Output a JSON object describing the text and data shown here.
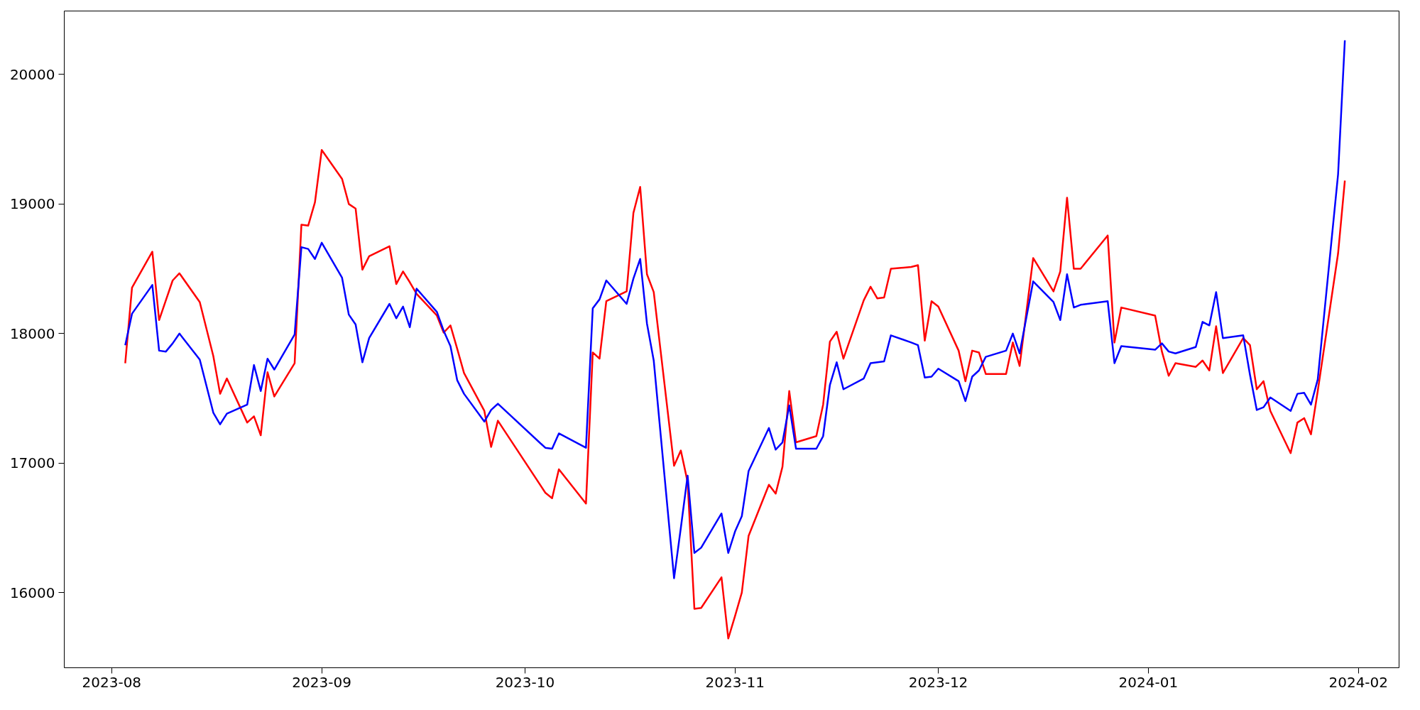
{
  "chart_data": {
    "type": "line",
    "x": [
      "2023-08-03",
      "2023-08-04",
      "2023-08-07",
      "2023-08-08",
      "2023-08-09",
      "2023-08-10",
      "2023-08-11",
      "2023-08-14",
      "2023-08-16",
      "2023-08-17",
      "2023-08-18",
      "2023-08-21",
      "2023-08-22",
      "2023-08-23",
      "2023-08-24",
      "2023-08-25",
      "2023-08-28",
      "2023-08-29",
      "2023-08-30",
      "2023-08-31",
      "2023-09-01",
      "2023-09-04",
      "2023-09-05",
      "2023-09-06",
      "2023-09-07",
      "2023-09-08",
      "2023-09-11",
      "2023-09-12",
      "2023-09-13",
      "2023-09-14",
      "2023-09-15",
      "2023-09-18",
      "2023-09-19",
      "2023-09-20",
      "2023-09-21",
      "2023-09-22",
      "2023-09-25",
      "2023-09-26",
      "2023-09-27",
      "2023-10-04",
      "2023-10-05",
      "2023-10-06",
      "2023-10-10",
      "2023-10-11",
      "2023-10-12",
      "2023-10-13",
      "2023-10-16",
      "2023-10-17",
      "2023-10-18",
      "2023-10-19",
      "2023-10-20",
      "2023-10-23",
      "2023-10-24",
      "2023-10-25",
      "2023-10-26",
      "2023-10-27",
      "2023-10-30",
      "2023-10-31",
      "2023-11-01",
      "2023-11-02",
      "2023-11-03",
      "2023-11-06",
      "2023-11-07",
      "2023-11-08",
      "2023-11-09",
      "2023-11-10",
      "2023-11-13",
      "2023-11-14",
      "2023-11-15",
      "2023-11-16",
      "2023-11-17",
      "2023-11-20",
      "2023-11-21",
      "2023-11-22",
      "2023-11-23",
      "2023-11-24",
      "2023-11-27",
      "2023-11-28",
      "2023-11-29",
      "2023-11-30",
      "2023-12-01",
      "2023-12-04",
      "2023-12-05",
      "2023-12-06",
      "2023-12-07",
      "2023-12-08",
      "2023-12-11",
      "2023-12-12",
      "2023-12-13",
      "2023-12-15",
      "2023-12-18",
      "2023-12-19",
      "2023-12-20",
      "2023-12-21",
      "2023-12-22",
      "2023-12-26",
      "2023-12-27",
      "2023-12-28",
      "2024-01-02",
      "2024-01-03",
      "2024-01-04",
      "2024-01-05",
      "2024-01-08",
      "2024-01-09",
      "2024-01-10",
      "2024-01-11",
      "2024-01-12",
      "2024-01-15",
      "2024-01-16",
      "2024-01-17",
      "2024-01-18",
      "2024-01-19",
      "2024-01-22",
      "2024-01-23",
      "2024-01-24",
      "2024-01-25",
      "2024-01-26",
      "2024-01-29",
      "2024-01-30"
    ],
    "series": [
      {
        "color": "#ff0000",
        "values": [
          17771,
          18354,
          18632,
          18104,
          18257,
          18410,
          18465,
          18243,
          17826,
          17535,
          17653,
          17313,
          17361,
          17215,
          17701,
          17514,
          17771,
          18840,
          18833,
          19014,
          19417,
          19194,
          19000,
          18965,
          18493,
          18597,
          18674,
          18382,
          18479,
          18396,
          18306,
          18139,
          18007,
          18063,
          17882,
          17695,
          17403,
          17125,
          17327,
          16771,
          16729,
          16952,
          16688,
          17854,
          17806,
          18250,
          18326,
          18931,
          19132,
          18458,
          18320,
          16979,
          17097,
          16854,
          15875,
          15882,
          16118,
          15646,
          15820,
          16000,
          16438,
          16833,
          16764,
          16972,
          17556,
          17160,
          17208,
          17451,
          17938,
          18014,
          17806,
          18257,
          18361,
          18271,
          18278,
          18500,
          18514,
          18528,
          17945,
          18250,
          18208,
          17868,
          17632,
          17868,
          17854,
          17688,
          17688,
          17931,
          17750,
          18583,
          18326,
          18479,
          19049,
          18500,
          18500,
          18757,
          17931,
          18201,
          18139,
          17861,
          17674,
          17771,
          17743,
          17792,
          17715,
          18056,
          17695,
          17965,
          17910,
          17570,
          17632,
          17403,
          17077,
          17313,
          17347,
          17222,
          17556,
          18618,
          19181
        ]
      },
      {
        "color": "#0000ff",
        "values": [
          17910,
          18153,
          18375,
          17868,
          17861,
          17924,
          18000,
          17799,
          17389,
          17299,
          17382,
          17451,
          17757,
          17556,
          17806,
          17722,
          17993,
          18667,
          18653,
          18576,
          18701,
          18431,
          18146,
          18070,
          17778,
          17965,
          18229,
          18118,
          18208,
          18049,
          18347,
          18167,
          18021,
          17903,
          17639,
          17535,
          17320,
          17410,
          17458,
          17118,
          17111,
          17229,
          17118,
          18195,
          18264,
          18410,
          18229,
          18424,
          18576,
          18077,
          17792,
          16111,
          16500,
          16903,
          16306,
          16347,
          16611,
          16306,
          16472,
          16590,
          16938,
          17271,
          17104,
          17160,
          17445,
          17111,
          17111,
          17208,
          17604,
          17778,
          17570,
          17653,
          17771,
          17778,
          17785,
          17986,
          17931,
          17910,
          17660,
          17667,
          17729,
          17632,
          17479,
          17667,
          17715,
          17820,
          17868,
          18000,
          17847,
          18403,
          18243,
          18104,
          18458,
          18201,
          18222,
          18250,
          17771,
          17903,
          17875,
          17924,
          17861,
          17847,
          17896,
          18090,
          18063,
          18320,
          17965,
          17986,
          17681,
          17410,
          17431,
          17507,
          17403,
          17535,
          17542,
          17451,
          17646,
          19229,
          20264
        ]
      }
    ],
    "xlim": [
      "2023-07-25",
      "2024-02-07"
    ],
    "xticks": [
      {
        "value": "2023-08-01",
        "label": "2023-08"
      },
      {
        "value": "2023-09-01",
        "label": "2023-09"
      },
      {
        "value": "2023-10-01",
        "label": "2023-10"
      },
      {
        "value": "2023-11-01",
        "label": "2023-11"
      },
      {
        "value": "2023-12-01",
        "label": "2023-12"
      },
      {
        "value": "2024-01-01",
        "label": "2024-01"
      },
      {
        "value": "2024-02-01",
        "label": "2024-02"
      }
    ],
    "ylim": [
      15420,
      20490
    ],
    "yticks": [
      16000,
      17000,
      18000,
      19000,
      20000
    ],
    "grid": false,
    "line_style": "solid",
    "marker": "none"
  }
}
